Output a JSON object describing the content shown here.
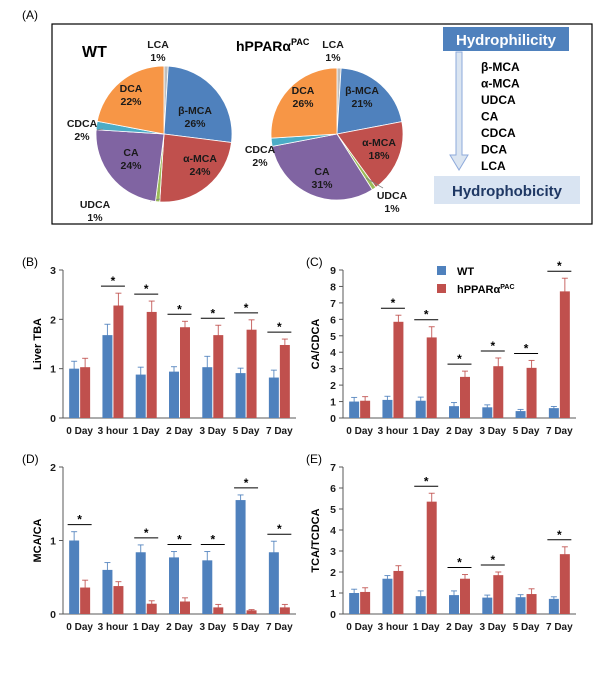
{
  "colors": {
    "wt": "#4f81bd",
    "hppar": "#c0504d",
    "beta_mca": "#4f81bd",
    "alpha_mca": "#c0504d",
    "udca": "#9bbb59",
    "ca": "#8064a2",
    "cdca": "#4bacc6",
    "dca": "#f79646",
    "lca": "#bfbfbf",
    "hydrophilicity_box": "#4f81bd",
    "arrow": "#b8cce4",
    "axis": "#595959"
  },
  "panel_labels": {
    "a": "(A)",
    "b": "(B)",
    "c": "(C)",
    "d": "(D)",
    "e": "(E)"
  },
  "significance_marker": "*",
  "hydrophobicity_scale": {
    "top_label": "Hydrophilicity",
    "bottom_label": "Hydrophobicity",
    "order": [
      "β-MCA",
      "α-MCA",
      "UDCA",
      "CA",
      "CDCA",
      "DCA",
      "LCA"
    ]
  },
  "legend": {
    "wt": "WT",
    "hppar_base": "hPPARα",
    "hppar_sup": "PAC"
  },
  "chart_data": [
    {
      "id": "pie_wt",
      "type": "pie",
      "title": "WT",
      "slices": [
        {
          "label": "LCA",
          "value": 1,
          "pct": "1%",
          "color_key": "lca"
        },
        {
          "label": "β-MCA",
          "value": 26,
          "pct": "26%",
          "color_key": "beta_mca"
        },
        {
          "label": "α-MCA",
          "value": 24,
          "pct": "24%",
          "color_key": "alpha_mca"
        },
        {
          "label": "UDCA",
          "value": 1,
          "pct": "1%",
          "color_key": "udca"
        },
        {
          "label": "CA",
          "value": 24,
          "pct": "24%",
          "color_key": "ca"
        },
        {
          "label": "CDCA",
          "value": 2,
          "pct": "2%",
          "color_key": "cdca"
        },
        {
          "label": "DCA",
          "value": 22,
          "pct": "22%",
          "color_key": "dca"
        }
      ]
    },
    {
      "id": "pie_hppar",
      "type": "pie",
      "title_base": "hPPARα",
      "title_sup": "PAC",
      "slices": [
        {
          "label": "LCA",
          "value": 1,
          "pct": "1%",
          "color_key": "lca"
        },
        {
          "label": "β-MCA",
          "value": 21,
          "pct": "21%",
          "color_key": "beta_mca"
        },
        {
          "label": "α-MCA",
          "value": 18,
          "pct": "18%",
          "color_key": "alpha_mca"
        },
        {
          "label": "UDCA",
          "value": 1,
          "pct": "1%",
          "color_key": "udca"
        },
        {
          "label": "CA",
          "value": 31,
          "pct": "31%",
          "color_key": "ca"
        },
        {
          "label": "CDCA",
          "value": 2,
          "pct": "2%",
          "color_key": "cdca"
        },
        {
          "label": "DCA",
          "value": 26,
          "pct": "26%",
          "color_key": "dca"
        }
      ]
    },
    {
      "id": "bar_B",
      "type": "bar",
      "ylabel": "Liver TBA",
      "ylim": [
        0,
        3
      ],
      "yticks": [
        "0",
        "1",
        "2",
        "3"
      ],
      "categories": [
        "0 Day",
        "3 hour",
        "1 Day",
        "2 Day",
        "3 Day",
        "5 Day",
        "7 Day"
      ],
      "series": [
        {
          "name": "WT",
          "values": [
            1.0,
            1.68,
            0.88,
            0.94,
            1.03,
            0.91,
            0.82
          ],
          "errors": [
            0.15,
            0.22,
            0.15,
            0.1,
            0.22,
            0.1,
            0.15
          ]
        },
        {
          "name": "hPPARα PAC",
          "values": [
            1.03,
            2.28,
            2.15,
            1.84,
            1.68,
            1.79,
            1.48
          ],
          "errors": [
            0.18,
            0.25,
            0.22,
            0.12,
            0.2,
            0.2,
            0.12
          ]
        }
      ],
      "significant": [
        1,
        2,
        3,
        4,
        5,
        6
      ]
    },
    {
      "id": "bar_C",
      "type": "bar",
      "ylabel": "CA/CDCA",
      "ylim": [
        0,
        9
      ],
      "yticks": [
        "0",
        "1",
        "2",
        "3",
        "4",
        "5",
        "6",
        "7",
        "8",
        "9"
      ],
      "categories": [
        "0 Day",
        "3 hour",
        "1 Day",
        "2 Day",
        "3 Day",
        "5 Day",
        "7 Day"
      ],
      "series": [
        {
          "name": "WT",
          "values": [
            1.0,
            1.1,
            1.05,
            0.72,
            0.65,
            0.42,
            0.6
          ],
          "errors": [
            0.25,
            0.22,
            0.22,
            0.22,
            0.15,
            0.1,
            0.1
          ]
        },
        {
          "name": "hPPARα PAC",
          "values": [
            1.05,
            5.85,
            4.9,
            2.5,
            3.15,
            3.05,
            7.7
          ],
          "errors": [
            0.25,
            0.4,
            0.65,
            0.35,
            0.5,
            0.45,
            0.8
          ]
        }
      ],
      "significant": [
        1,
        2,
        3,
        4,
        5,
        6
      ]
    },
    {
      "id": "bar_D",
      "type": "bar",
      "ylabel": "MCA/CA",
      "ylim": [
        0,
        2
      ],
      "yticks": [
        "0",
        "1",
        "2"
      ],
      "categories": [
        "0 Day",
        "3 hour",
        "1 Day",
        "2 Day",
        "3 Day",
        "5 Day",
        "7 Day"
      ],
      "series": [
        {
          "name": "WT",
          "values": [
            1.0,
            0.6,
            0.84,
            0.77,
            0.73,
            1.55,
            0.84
          ],
          "errors": [
            0.12,
            0.1,
            0.1,
            0.08,
            0.12,
            0.07,
            0.15
          ]
        },
        {
          "name": "hPPARα PAC",
          "values": [
            0.36,
            0.38,
            0.14,
            0.17,
            0.09,
            0.05,
            0.09
          ],
          "errors": [
            0.1,
            0.06,
            0.04,
            0.05,
            0.04,
            0.01,
            0.04
          ]
        }
      ],
      "significant": [
        0,
        2,
        3,
        4,
        5,
        6
      ]
    },
    {
      "id": "bar_E",
      "type": "bar",
      "ylabel": "TCA/TCDCA",
      "ylim": [
        0,
        7
      ],
      "yticks": [
        "0",
        "1",
        "2",
        "3",
        "4",
        "5",
        "6",
        "7"
      ],
      "categories": [
        "0 Day",
        "3 hour",
        "1 Day",
        "2 Day",
        "3 Day",
        "5 Day",
        "7 Day"
      ],
      "series": [
        {
          "name": "WT",
          "values": [
            1.0,
            1.68,
            0.85,
            0.9,
            0.78,
            0.8,
            0.72
          ],
          "errors": [
            0.18,
            0.15,
            0.25,
            0.2,
            0.12,
            0.12,
            0.1
          ]
        },
        {
          "name": "hPPARα PAC",
          "values": [
            1.05,
            2.05,
            5.35,
            1.68,
            1.85,
            0.95,
            2.85
          ],
          "errors": [
            0.2,
            0.25,
            0.4,
            0.2,
            0.15,
            0.25,
            0.35
          ]
        }
      ],
      "significant": [
        2,
        3,
        4,
        6
      ]
    }
  ]
}
